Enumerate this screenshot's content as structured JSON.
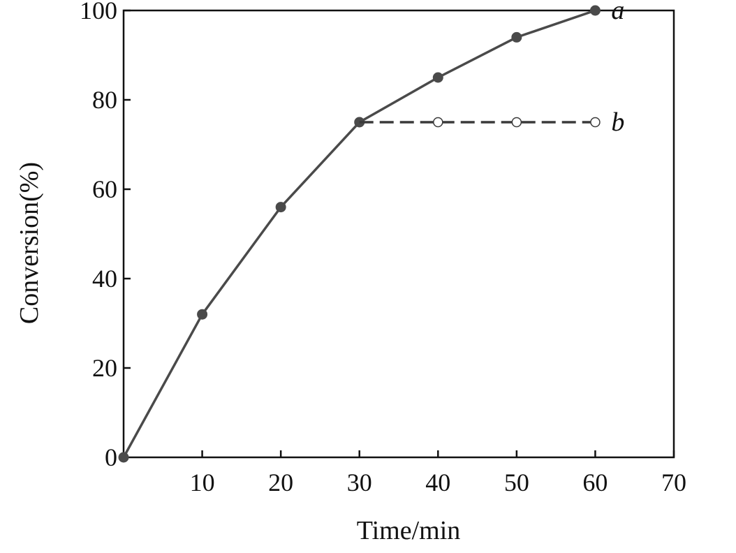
{
  "chart_data": {
    "type": "line",
    "title": "",
    "xlabel": "Time/min",
    "ylabel": "Conversion(%)",
    "xlim": [
      0,
      70
    ],
    "ylim": [
      0,
      100
    ],
    "xticks": [
      10,
      20,
      30,
      40,
      50,
      60,
      70
    ],
    "yticks": [
      0,
      20,
      40,
      60,
      80,
      100
    ],
    "grid": false,
    "legend": "none",
    "series": [
      {
        "name": "a",
        "style": "solid",
        "marker": "filled-circle",
        "color": "#4a4a4a",
        "x": [
          0,
          10,
          20,
          30,
          40,
          50,
          60
        ],
        "y": [
          0,
          32,
          56,
          75,
          85,
          94,
          100
        ]
      },
      {
        "name": "b",
        "style": "dashed",
        "marker": "open-circle",
        "color": "#3a3a3a",
        "x": [
          30,
          40,
          50,
          60
        ],
        "y": [
          75,
          75,
          75,
          75
        ]
      }
    ]
  }
}
